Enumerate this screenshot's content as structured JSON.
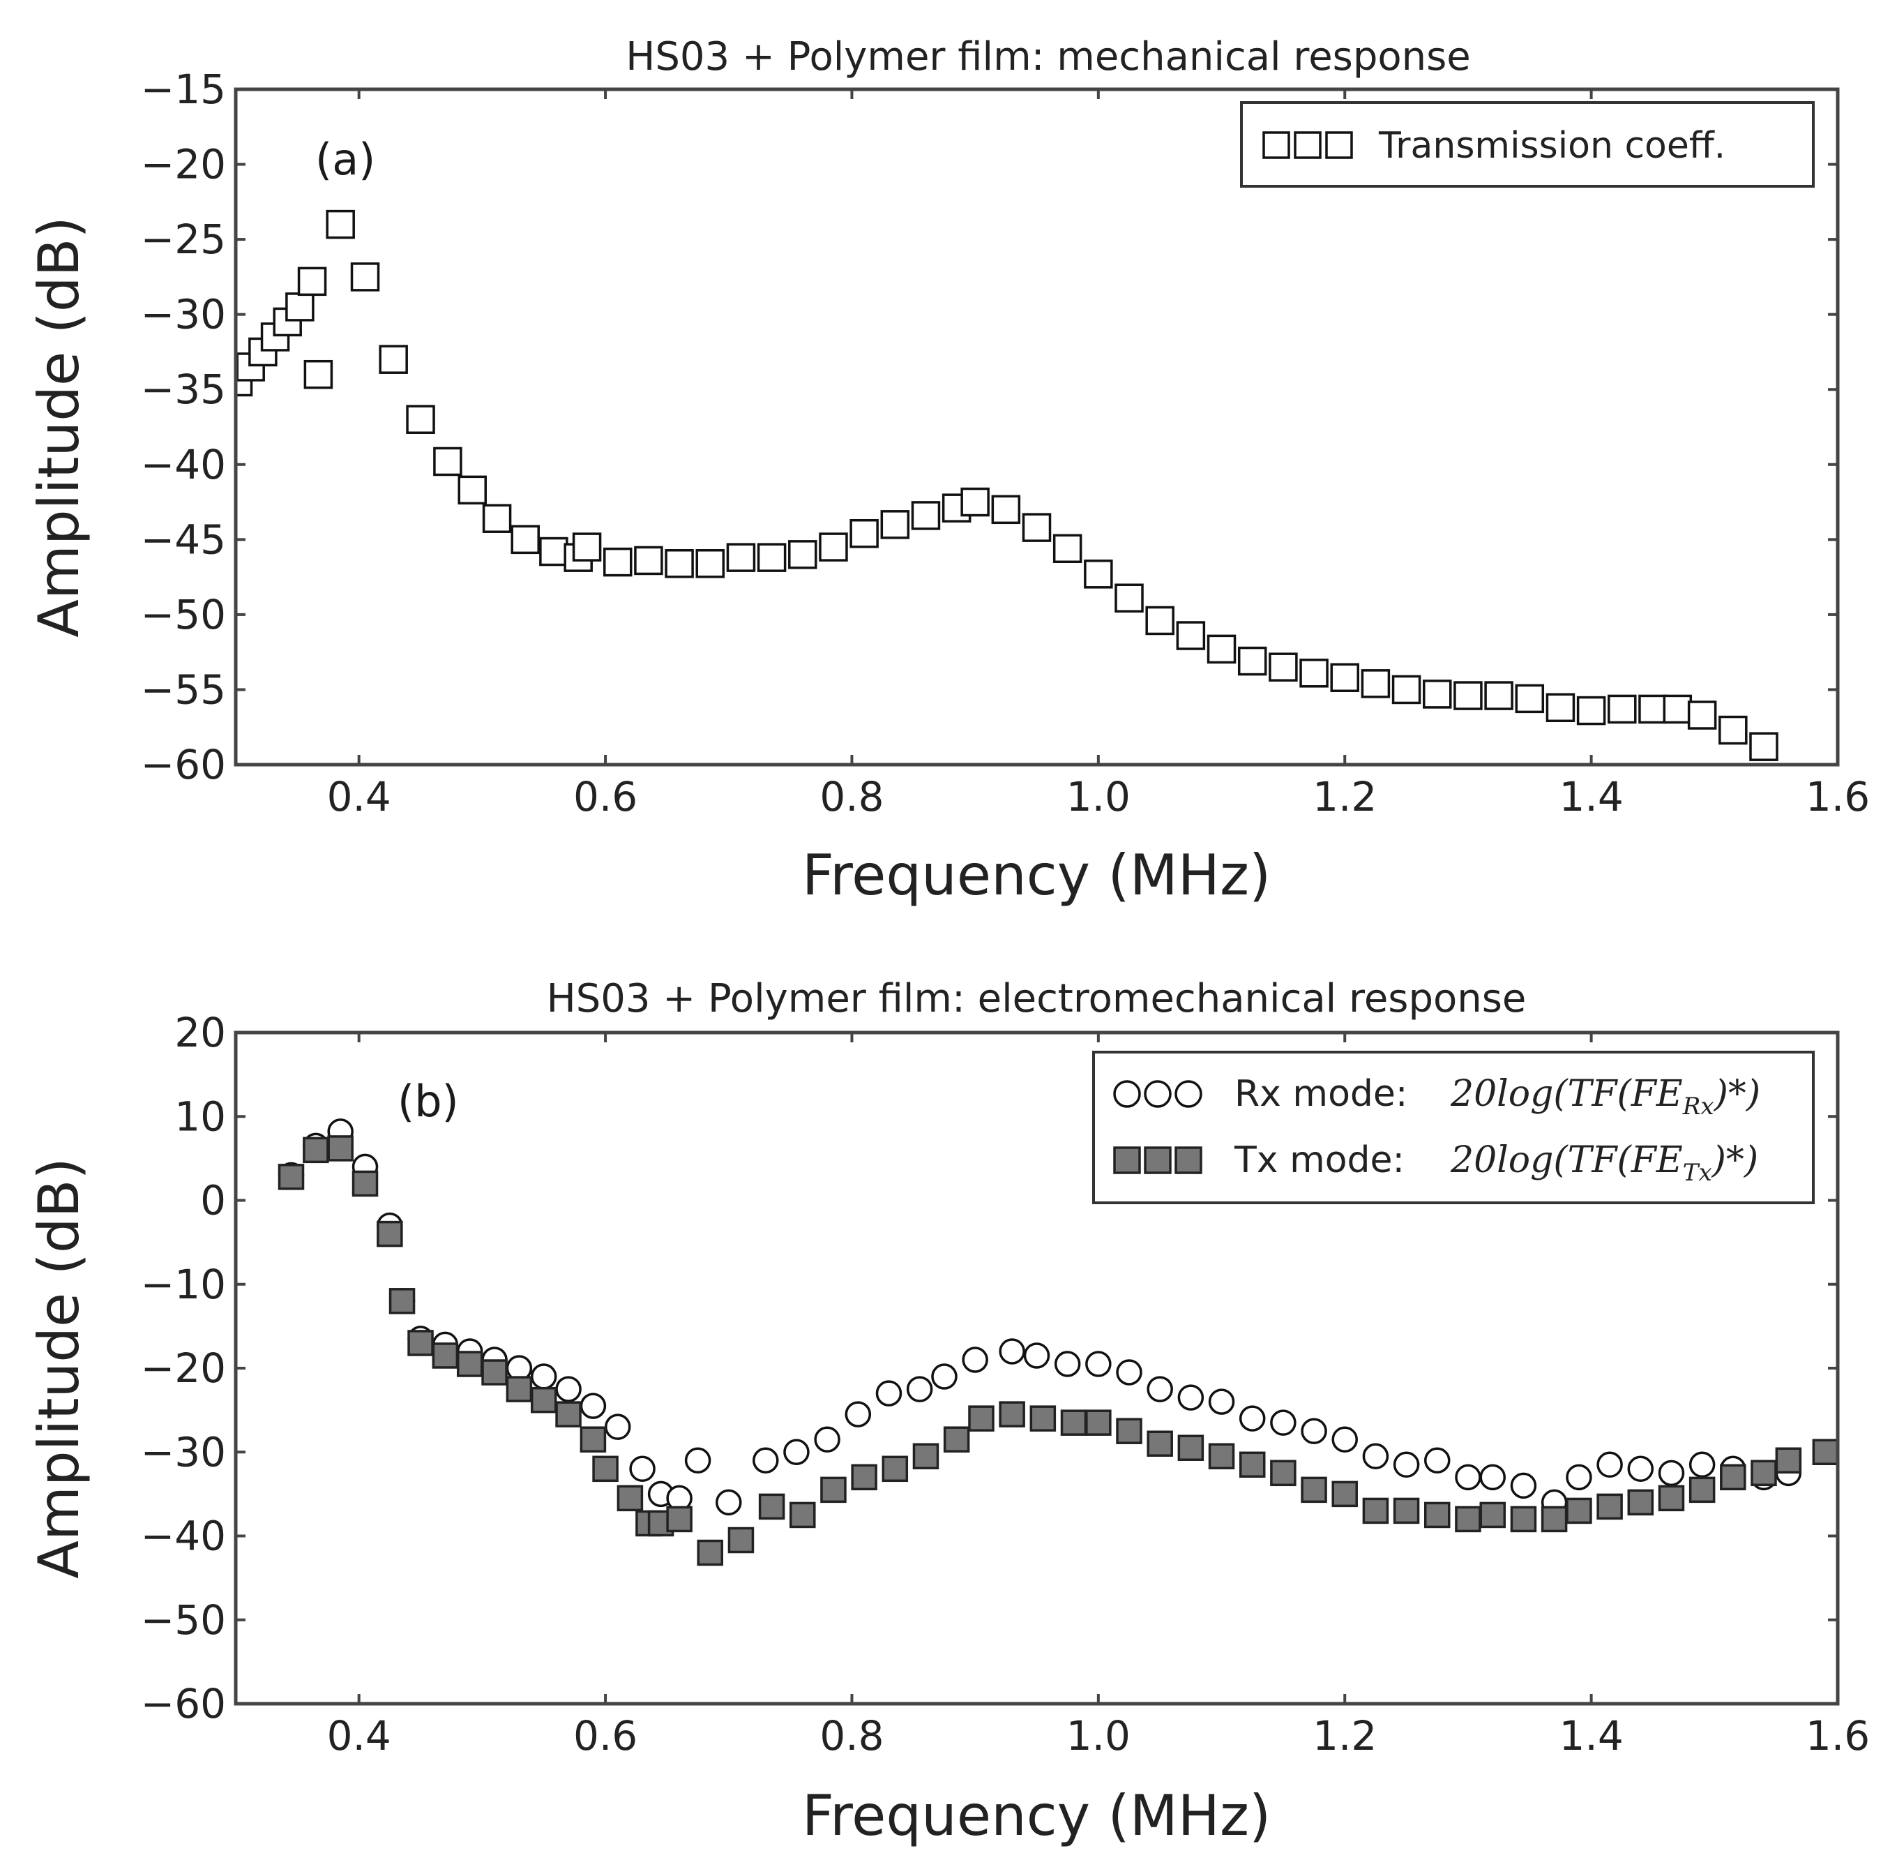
{
  "chart_data": [
    {
      "id": "a",
      "type": "scatter",
      "title": "HS03 + Polymer film: mechanical response",
      "panel_label": "(a)",
      "xlabel": "Frequency (MHz)",
      "ylabel": "Amplitude (dB)",
      "xlim": [
        0.3,
        1.6
      ],
      "ylim": [
        -60,
        -15
      ],
      "xticks": [
        0.4,
        0.6,
        0.8,
        1.0,
        1.2,
        1.4,
        1.6
      ],
      "xtick_labels": [
        "0.4",
        "0.6",
        "0.8",
        "1.0",
        "1.2",
        "1.4",
        "1.6"
      ],
      "yticks": [
        -15,
        -20,
        -25,
        -30,
        -35,
        -40,
        -45,
        -50,
        -55,
        -60
      ],
      "ytick_labels": [
        "−15",
        "−20",
        "−25",
        "−30",
        "−35",
        "−40",
        "−45",
        "−50",
        "−55",
        "−60"
      ],
      "legend_position": "top-right",
      "series": [
        {
          "name": "Transmission coeff.",
          "marker": "square-open",
          "color": "#ffffff",
          "edge": "#111111",
          "x": [
            0.302,
            0.312,
            0.322,
            0.332,
            0.342,
            0.352,
            0.362,
            0.367,
            0.385,
            0.405,
            0.428,
            0.45,
            0.472,
            0.492,
            0.512,
            0.535,
            0.558,
            0.578,
            0.585,
            0.61,
            0.635,
            0.66,
            0.685,
            0.71,
            0.735,
            0.76,
            0.785,
            0.81,
            0.835,
            0.86,
            0.885,
            0.9,
            0.925,
            0.95,
            0.975,
            1.0,
            1.025,
            1.05,
            1.075,
            1.1,
            1.125,
            1.15,
            1.175,
            1.2,
            1.225,
            1.25,
            1.275,
            1.3,
            1.325,
            1.35,
            1.375,
            1.4,
            1.425,
            1.45,
            1.47,
            1.49,
            1.515,
            1.54
          ],
          "y": [
            -34.5,
            -33.5,
            -32.5,
            -31.5,
            -30.5,
            -29.5,
            -27.8,
            -34.0,
            -24.0,
            -27.5,
            -33.0,
            -37.0,
            -39.8,
            -41.7,
            -43.6,
            -45.0,
            -45.8,
            -46.2,
            -45.5,
            -46.5,
            -46.4,
            -46.6,
            -46.6,
            -46.2,
            -46.2,
            -46.0,
            -45.5,
            -44.6,
            -44.0,
            -43.4,
            -42.9,
            -42.5,
            -43.0,
            -44.2,
            -45.6,
            -47.3,
            -48.9,
            -50.4,
            -51.4,
            -52.3,
            -53.1,
            -53.5,
            -53.9,
            -54.2,
            -54.6,
            -55.0,
            -55.3,
            -55.4,
            -55.4,
            -55.6,
            -56.2,
            -56.4,
            -56.3,
            -56.3,
            -56.3,
            -56.7,
            -57.7,
            -58.8
          ]
        }
      ]
    },
    {
      "id": "b",
      "type": "scatter",
      "title": "HS03 + Polymer film: electromechanical response",
      "panel_label": "(b)",
      "xlabel": "Frequency (MHz)",
      "ylabel": "Amplitude (dB)",
      "xlim": [
        0.3,
        1.6
      ],
      "ylim": [
        -60,
        20
      ],
      "xticks": [
        0.4,
        0.6,
        0.8,
        1.0,
        1.2,
        1.4,
        1.6
      ],
      "xtick_labels": [
        "0.4",
        "0.6",
        "0.8",
        "1.0",
        "1.2",
        "1.4",
        "1.6"
      ],
      "yticks": [
        20,
        10,
        0,
        -10,
        -20,
        -30,
        -40,
        -50,
        -60
      ],
      "ytick_labels": [
        "20",
        "10",
        "0",
        "−10",
        "−20",
        "−30",
        "−40",
        "−50",
        "−60"
      ],
      "legend_position": "top-right",
      "series": [
        {
          "name": "Rx mode:",
          "formula": "20log(TF(FE",
          "formula_sub": "Rx",
          "formula_end": ")*)",
          "marker": "circle-open",
          "color": "#ffffff",
          "edge": "#111111",
          "x": [
            0.345,
            0.365,
            0.385,
            0.405,
            0.425,
            0.435,
            0.45,
            0.47,
            0.49,
            0.51,
            0.53,
            0.55,
            0.57,
            0.59,
            0.61,
            0.63,
            0.645,
            0.66,
            0.675,
            0.7,
            0.73,
            0.755,
            0.78,
            0.805,
            0.83,
            0.855,
            0.875,
            0.9,
            0.93,
            0.95,
            0.975,
            1.0,
            1.025,
            1.05,
            1.075,
            1.1,
            1.125,
            1.15,
            1.175,
            1.2,
            1.225,
            1.25,
            1.275,
            1.3,
            1.32,
            1.345,
            1.37,
            1.39,
            1.415,
            1.44,
            1.465,
            1.49,
            1.515,
            1.54,
            1.56
          ],
          "y": [
            3.0,
            6.5,
            8.2,
            4.0,
            -3.0,
            -12.0,
            -16.5,
            -17.2,
            -18.0,
            -19.0,
            -20.0,
            -21.0,
            -22.5,
            -24.5,
            -27.0,
            -32.0,
            -35.0,
            -35.5,
            -31.0,
            -36.0,
            -31.0,
            -30.0,
            -28.5,
            -25.5,
            -23.0,
            -22.5,
            -21.0,
            -19.0,
            -18.0,
            -18.5,
            -19.5,
            -19.5,
            -20.5,
            -22.5,
            -23.5,
            -24.0,
            -26.0,
            -26.5,
            -27.5,
            -28.5,
            -30.5,
            -31.5,
            -31.0,
            -33.0,
            -33.0,
            -34.0,
            -36.0,
            -33.0,
            -31.5,
            -32.0,
            -32.5,
            -31.5,
            -32.0,
            -33.0,
            -32.5
          ]
        },
        {
          "name": "Tx mode:",
          "formula": "20log(TF(FE",
          "formula_sub": "Tx",
          "formula_end": ")*)",
          "marker": "square-filled",
          "color": "#777777",
          "edge": "#222222",
          "x": [
            0.345,
            0.365,
            0.385,
            0.405,
            0.425,
            0.435,
            0.45,
            0.47,
            0.49,
            0.51,
            0.53,
            0.55,
            0.57,
            0.59,
            0.6,
            0.62,
            0.635,
            0.645,
            0.66,
            0.685,
            0.71,
            0.735,
            0.76,
            0.785,
            0.81,
            0.835,
            0.86,
            0.885,
            0.905,
            0.93,
            0.955,
            0.98,
            1.0,
            1.025,
            1.05,
            1.075,
            1.1,
            1.125,
            1.15,
            1.175,
            1.2,
            1.225,
            1.25,
            1.275,
            1.3,
            1.32,
            1.345,
            1.37,
            1.39,
            1.415,
            1.44,
            1.465,
            1.49,
            1.515,
            1.54,
            1.56,
            1.59
          ],
          "y": [
            2.8,
            6.0,
            6.2,
            2.0,
            -4.0,
            -12.0,
            -17.0,
            -18.5,
            -19.5,
            -20.5,
            -22.5,
            -23.8,
            -25.5,
            -28.5,
            -32.0,
            -35.5,
            -38.5,
            -38.5,
            -38.0,
            -42.0,
            -40.5,
            -36.5,
            -37.5,
            -34.5,
            -33.0,
            -32.0,
            -30.5,
            -28.5,
            -26.0,
            -25.5,
            -26.0,
            -26.5,
            -26.5,
            -27.5,
            -29.0,
            -29.5,
            -30.5,
            -31.5,
            -32.5,
            -34.5,
            -35.0,
            -37.0,
            -37.0,
            -37.5,
            -38.0,
            -37.5,
            -38.0,
            -38.0,
            -37.0,
            -36.5,
            -36.0,
            -35.5,
            -34.5,
            -33.0,
            -32.5,
            -31.0,
            -30.0
          ]
        }
      ]
    }
  ]
}
